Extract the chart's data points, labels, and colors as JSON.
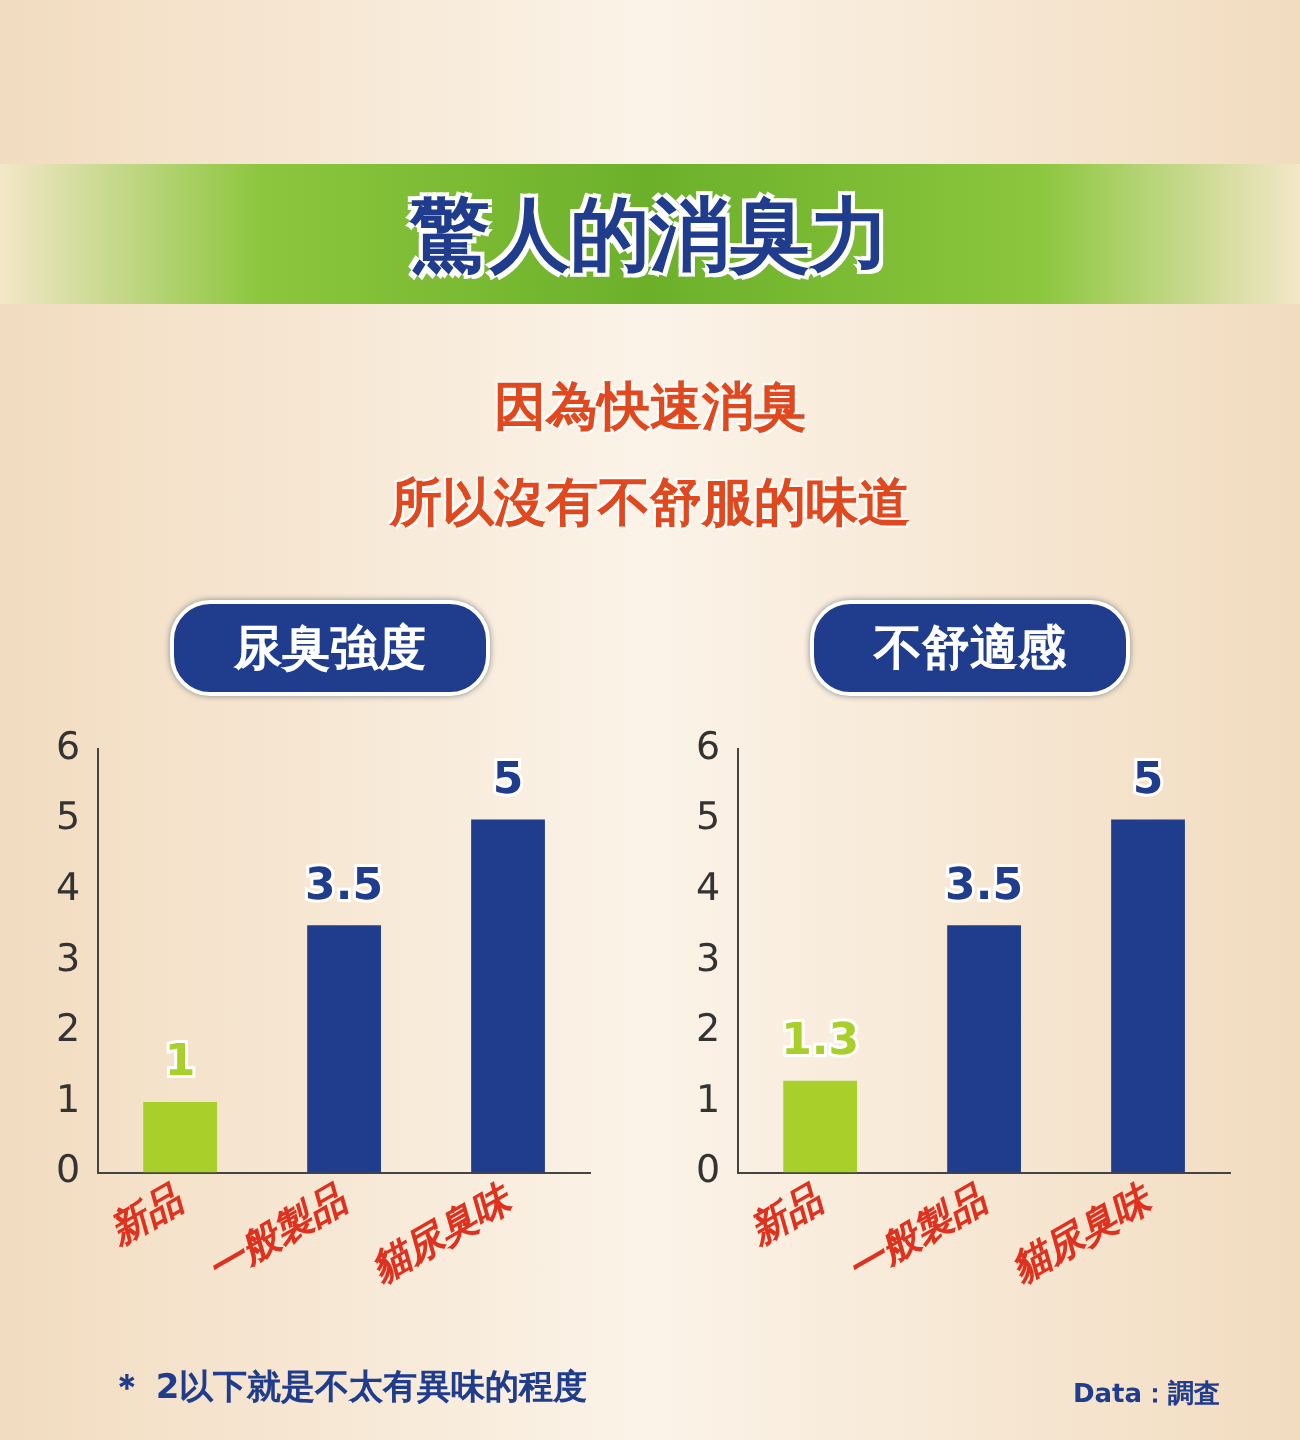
{
  "chart_data": [
    {
      "type": "other",
      "title": "驚人的消臭力",
      "subtitle": "因為快速消臭",
      "annotations": [
        "所以沒有不舒服的味道",
        "＊ 2以下就是不太有異味的程度",
        "Data：調査"
      ]
    },
    {
      "type": "bar",
      "title": "尿臭強度",
      "categories": [
        "新品",
        "一般製品",
        "貓尿臭味"
      ],
      "values": [
        1,
        3.5,
        5
      ],
      "colors": [
        "#a8cf2a",
        "#1f3d8c",
        "#1f3d8c"
      ],
      "ylim": [
        0,
        6
      ],
      "yticks": [
        0,
        1,
        2,
        3,
        4,
        5,
        6
      ],
      "grid": false,
      "data_labels": true
    },
    {
      "type": "bar",
      "title": "不舒適感",
      "categories": [
        "新品",
        "一般製品",
        "貓尿臭味"
      ],
      "values": [
        1.3,
        3.5,
        5
      ],
      "colors": [
        "#a8cf2a",
        "#1f3d8c",
        "#1f3d8c"
      ],
      "ylim": [
        0,
        6
      ],
      "yticks": [
        0,
        1,
        2,
        3,
        4,
        5,
        6
      ],
      "grid": false,
      "data_labels": true
    }
  ]
}
